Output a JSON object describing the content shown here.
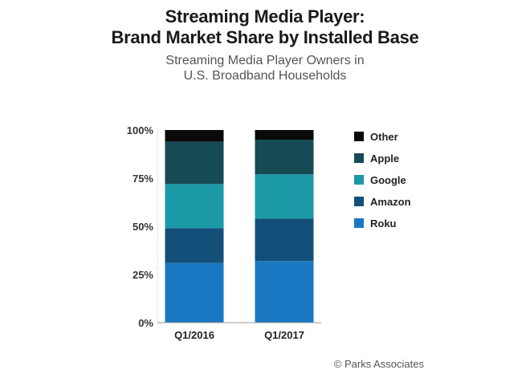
{
  "chart_data": {
    "type": "bar",
    "stacked": true,
    "title": "Streaming Media Player:",
    "title_line2": "Brand Market Share by Installed Base",
    "subtitle": "Streaming Media Player Owners in",
    "subtitle_line2": "U.S. Broadband Households",
    "categories": [
      "Q1/2016",
      "Q1/2017"
    ],
    "yticks": [
      "0%",
      "25%",
      "50%",
      "75%",
      "100%"
    ],
    "ylim": [
      0,
      100
    ],
    "series": [
      {
        "name": "Roku",
        "color": "#1a78c2",
        "values": [
          31,
          32
        ]
      },
      {
        "name": "Amazon",
        "color": "#134f78",
        "values": [
          18,
          22
        ]
      },
      {
        "name": "Google",
        "color": "#1b99a6",
        "values": [
          23,
          23
        ]
      },
      {
        "name": "Apple",
        "color": "#164a54",
        "values": [
          22,
          18
        ]
      },
      {
        "name": "Other",
        "color": "#0a0a0a",
        "values": [
          6,
          5
        ]
      }
    ],
    "legend_order": [
      "Other",
      "Apple",
      "Google",
      "Amazon",
      "Roku"
    ],
    "legend_position": "right"
  },
  "credit": "© Parks Associates"
}
